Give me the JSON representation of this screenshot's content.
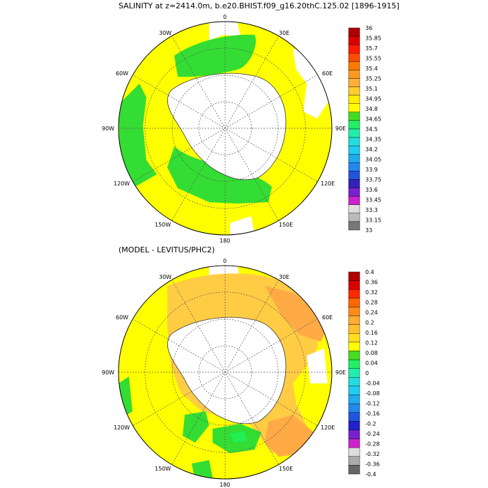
{
  "panels": [
    {
      "title": "SALINITY at z=2414.0m, b.e20.BHIST.f09_g16.20thC.125.02 [1896-1915]",
      "lon_labels": {
        "n": "0",
        "e30": "30E",
        "e60": "60E",
        "e90": "90E",
        "e120": "120E",
        "e150": "150E",
        "s": "180",
        "w150": "150W",
        "w120": "120W",
        "w90": "90W",
        "w60": "60W",
        "w30": "30W"
      },
      "colorbar_labels": [
        "36",
        "35.85",
        "35.7",
        "35.55",
        "35.4",
        "35.25",
        "35.1",
        "34.95",
        "34.8",
        "34.65",
        "34.5",
        "34.35",
        "34.2",
        "34.05",
        "33.9",
        "33.75",
        "33.6",
        "33.45",
        "33.3",
        "33.15",
        "33"
      ],
      "colorbar_colors": [
        "#b00000",
        "#d80000",
        "#ff1a00",
        "#ff4a00",
        "#ff7a00",
        "#ff9a20",
        "#ffb03a",
        "#ffcc30",
        "#ffee00",
        "#ffff00",
        "#44dd22",
        "#22ee66",
        "#22eeaa",
        "#22dddd",
        "#22ccee",
        "#22aaee",
        "#2288ee",
        "#2255dd",
        "#3322bb",
        "#7722cc",
        "#cc22cc",
        "#dddddd",
        "#bbbbbb",
        "#777777"
      ]
    },
    {
      "title": "(MODEL - LEVITUS/PHC2)",
      "lon_labels": {
        "n": "0",
        "e30": "30E",
        "e60": "60E",
        "e90": "90E",
        "e120": "120E",
        "e150": "150E",
        "s": "180",
        "w150": "150W",
        "w120": "120W",
        "w90": "90W",
        "w60": "60W",
        "w30": "30W"
      },
      "colorbar_labels": [
        "0.4",
        "0.36",
        "0.32",
        "0.28",
        "0.24",
        "0.2",
        "0.16",
        "0.12",
        "0.08",
        "0.04",
        "0",
        "-0.04",
        "-0.08",
        "-0.12",
        "-0.16",
        "-0.2",
        "-0.24",
        "-0.28",
        "-0.32",
        "-0.36",
        "-0.4"
      ],
      "colorbar_colors": [
        "#b00000",
        "#d80000",
        "#ff2a00",
        "#ff6600",
        "#ff8c1a",
        "#ffaa33",
        "#ffc030",
        "#ffdd20",
        "#ffff00",
        "#44dd22",
        "#22ee66",
        "#22eeaa",
        "#22dddd",
        "#22ccee",
        "#22aaee",
        "#2288ee",
        "#2255dd",
        "#2222cc",
        "#7722cc",
        "#cc22cc",
        "#dddddd",
        "#aaaaaa",
        "#666666"
      ]
    }
  ],
  "colors": {
    "yellow": "#ffff00",
    "green": "#33dd33",
    "light_orange": "#ffcc44",
    "orange": "#ffaa44",
    "bright_green": "#22ee55"
  }
}
